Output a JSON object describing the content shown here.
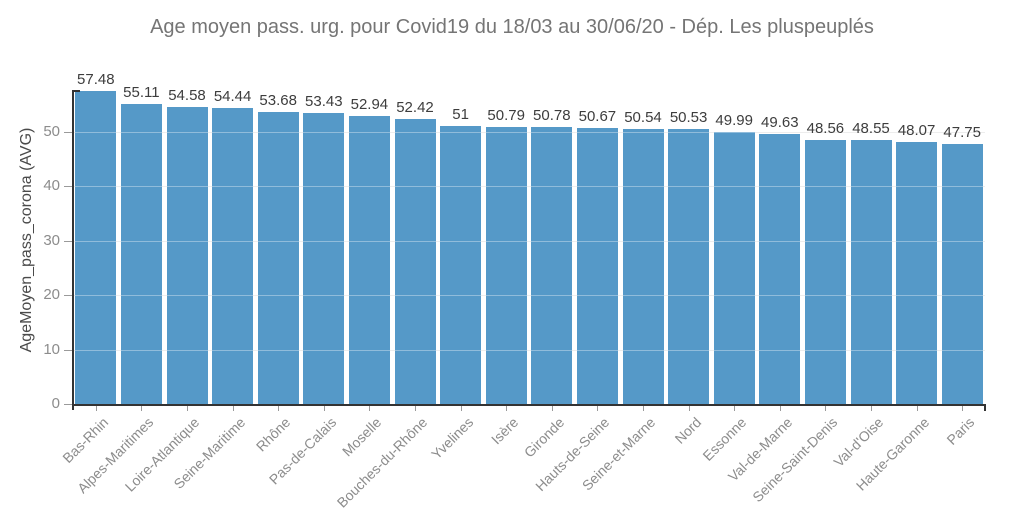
{
  "title": "Age moyen pass. urg. pour Covid19 du 18/03 au 30/06/20 - Dép. Les pluspeuplés",
  "chart_data": {
    "type": "bar",
    "title": "Age moyen pass. urg. pour Covid19 du 18/03 au 30/06/20 - Dép. Les pluspeuplés",
    "xlabel": "",
    "ylabel": "AgeMoyen_pass_corona (AVG)",
    "categories": [
      "Bas-Rhin",
      "Alpes-Maritimes",
      "Loire-Atlantique",
      "Seine-Maritime",
      "Rhône",
      "Pas-de-Calais",
      "Moselle",
      "Bouches-du-Rhône",
      "Yvelines",
      "Isère",
      "Gironde",
      "Hauts-de-Seine",
      "Seine-et-Marne",
      "Nord",
      "Essonne",
      "Val-de-Marne",
      "Seine-Saint-Denis",
      "Val-d'Oise",
      "Haute-Garonne",
      "Paris"
    ],
    "values": [
      57.48,
      55.11,
      54.58,
      54.44,
      53.68,
      53.43,
      52.94,
      52.42,
      51,
      50.79,
      50.78,
      50.67,
      50.54,
      50.53,
      49.99,
      49.63,
      48.56,
      48.55,
      48.07,
      47.75
    ],
    "value_labels": [
      "57.48",
      "55.11",
      "54.58",
      "54.44",
      "53.68",
      "53.43",
      "52.94",
      "52.42",
      "51",
      "50.79",
      "50.78",
      "50.67",
      "50.54",
      "50.53",
      "49.99",
      "49.63",
      "48.56",
      "48.55",
      "48.07",
      "47.75"
    ],
    "yticks": [
      0,
      10,
      20,
      30,
      40,
      50
    ],
    "ylim": [
      0,
      57.48
    ],
    "grid": "horizontal",
    "legend": "none",
    "colors": {
      "bar": "#5599c8",
      "title": "#757575",
      "axis_line": "#333333",
      "tick_label": "#8c8c8c",
      "value_label": "#3d3d3d",
      "ylabel": "#4a4a4a",
      "gridline": "#e4e4e4",
      "background": "#ffffff"
    }
  }
}
